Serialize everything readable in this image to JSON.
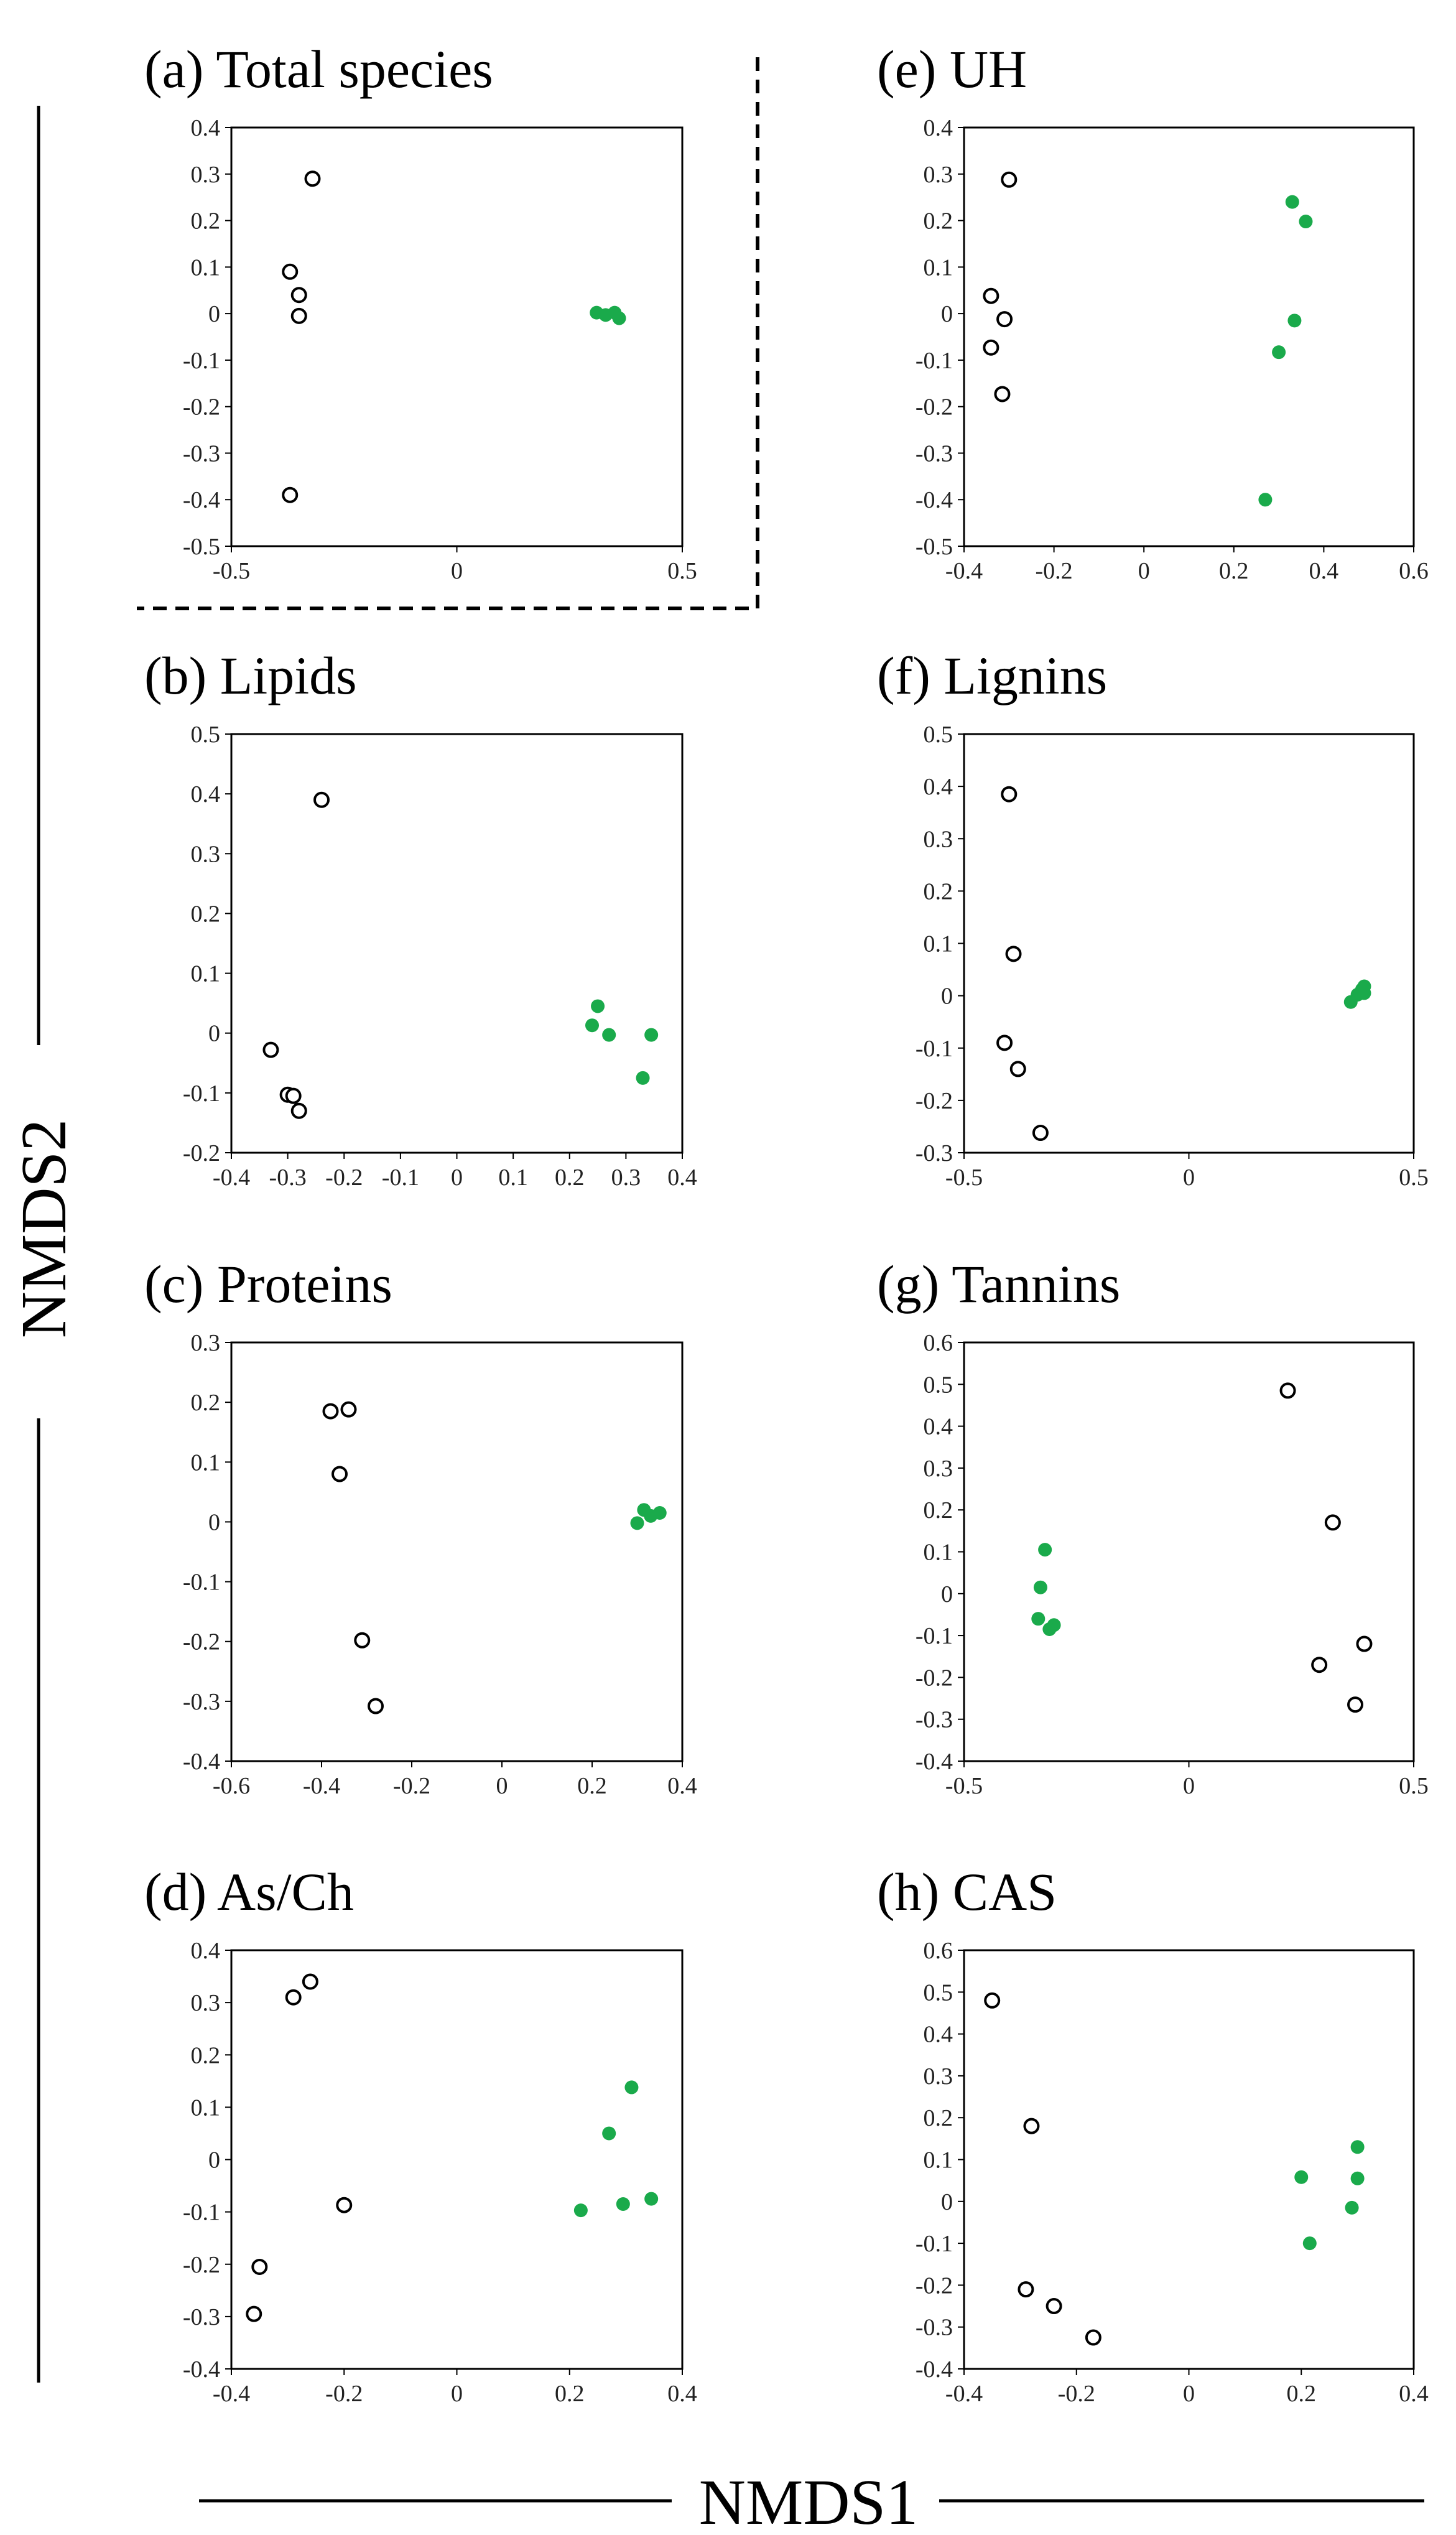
{
  "figure": {
    "x_axis_label": "NMDS1",
    "y_axis_label": "NMDS2",
    "colors": {
      "group_filled": "#1aaa4b",
      "group_open_stroke": "#000000",
      "frame": "#000000"
    }
  },
  "chart_data": [
    {
      "type": "scatter",
      "title": "(a) Total species",
      "xlim": [
        -0.5,
        0.5
      ],
      "xticks": [
        -0.5,
        0,
        0.5
      ],
      "xtick_labels": [
        "-0.5",
        "0",
        "0.5"
      ],
      "ylim": [
        -0.5,
        0.4
      ],
      "yticks": [
        -0.5,
        -0.4,
        -0.3,
        -0.2,
        -0.1,
        0,
        0.1,
        0.2,
        0.3,
        0.4
      ],
      "ytick_labels": [
        "-0.5",
        "-0.4",
        "-0.3",
        "-0.2",
        "-0.1",
        "0",
        "0.1",
        "0.2",
        "0.3",
        "0.4"
      ],
      "dashed_frame": true,
      "series": [
        {
          "name": "open",
          "style": "open",
          "points": [
            [
              -0.32,
              0.29
            ],
            [
              -0.37,
              0.09
            ],
            [
              -0.35,
              0.04
            ],
            [
              -0.35,
              -0.005
            ],
            [
              -0.37,
              -0.39
            ]
          ]
        },
        {
          "name": "filled",
          "style": "filled",
          "points": [
            [
              0.31,
              0.002
            ],
            [
              0.33,
              -0.003
            ],
            [
              0.35,
              0.002
            ],
            [
              0.36,
              -0.01
            ]
          ]
        }
      ]
    },
    {
      "type": "scatter",
      "title": "(b) Lipids",
      "xlim": [
        -0.4,
        0.4
      ],
      "xticks": [
        -0.4,
        -0.3,
        -0.2,
        -0.1,
        0,
        0.1,
        0.2,
        0.3,
        0.4
      ],
      "xtick_labels": [
        "-0.4",
        "-0.3",
        "-0.2",
        "-0.1",
        "0",
        "0.1",
        "0.2",
        "0.3",
        "0.4"
      ],
      "ylim": [
        -0.2,
        0.5
      ],
      "yticks": [
        -0.2,
        -0.1,
        0,
        0.1,
        0.2,
        0.3,
        0.4,
        0.5
      ],
      "ytick_labels": [
        "-0.2",
        "-0.1",
        "0",
        "0.1",
        "0.2",
        "0.3",
        "0.4",
        "0.5"
      ],
      "dashed_frame": false,
      "series": [
        {
          "name": "open",
          "style": "open",
          "points": [
            [
              -0.24,
              0.39
            ],
            [
              -0.33,
              -0.028
            ],
            [
              -0.3,
              -0.103
            ],
            [
              -0.29,
              -0.105
            ],
            [
              -0.28,
              -0.13
            ]
          ]
        },
        {
          "name": "filled",
          "style": "filled",
          "points": [
            [
              0.24,
              0.013
            ],
            [
              0.25,
              0.045
            ],
            [
              0.27,
              -0.003
            ],
            [
              0.33,
              -0.075
            ],
            [
              0.345,
              -0.003
            ]
          ]
        }
      ]
    },
    {
      "type": "scatter",
      "title": "(c) Proteins",
      "xlim": [
        -0.6,
        0.4
      ],
      "xticks": [
        -0.6,
        -0.4,
        -0.2,
        0,
        0.2,
        0.4
      ],
      "xtick_labels": [
        "-0.6",
        "-0.4",
        "-0.2",
        "0",
        "0.2",
        "0.4"
      ],
      "ylim": [
        -0.4,
        0.3
      ],
      "yticks": [
        -0.4,
        -0.3,
        -0.2,
        -0.1,
        0,
        0.1,
        0.2,
        0.3
      ],
      "ytick_labels": [
        "-0.4",
        "-0.3",
        "-0.2",
        "-0.1",
        "0",
        "0.1",
        "0.2",
        "0.3"
      ],
      "dashed_frame": false,
      "series": [
        {
          "name": "open",
          "style": "open",
          "points": [
            [
              -0.38,
              0.185
            ],
            [
              -0.34,
              0.188
            ],
            [
              -0.36,
              0.08
            ],
            [
              -0.31,
              -0.198
            ],
            [
              -0.28,
              -0.308
            ]
          ]
        },
        {
          "name": "filled",
          "style": "filled",
          "points": [
            [
              0.3,
              -0.002
            ],
            [
              0.315,
              0.02
            ],
            [
              0.33,
              0.01
            ],
            [
              0.35,
              0.015
            ]
          ]
        }
      ]
    },
    {
      "type": "scatter",
      "title": "(d) As/Ch",
      "xlim": [
        -0.4,
        0.4
      ],
      "xticks": [
        -0.4,
        -0.2,
        0,
        0.2,
        0.4
      ],
      "xtick_labels": [
        "-0.4",
        "-0.2",
        "0",
        "0.2",
        "0.4"
      ],
      "ylim": [
        -0.4,
        0.4
      ],
      "yticks": [
        -0.4,
        -0.3,
        -0.2,
        -0.1,
        0,
        0.1,
        0.2,
        0.3,
        0.4
      ],
      "ytick_labels": [
        "-0.4",
        "-0.3",
        "-0.2",
        "-0.1",
        "0",
        "0.1",
        "0.2",
        "0.3",
        "0.4"
      ],
      "dashed_frame": false,
      "series": [
        {
          "name": "open",
          "style": "open",
          "points": [
            [
              -0.29,
              0.31
            ],
            [
              -0.26,
              0.34
            ],
            [
              -0.2,
              -0.087
            ],
            [
              -0.35,
              -0.205
            ],
            [
              -0.36,
              -0.295
            ]
          ]
        },
        {
          "name": "filled",
          "style": "filled",
          "points": [
            [
              0.22,
              -0.097
            ],
            [
              0.27,
              0.05
            ],
            [
              0.295,
              -0.085
            ],
            [
              0.31,
              0.138
            ],
            [
              0.345,
              -0.075
            ]
          ]
        }
      ]
    },
    {
      "type": "scatter",
      "title": "(e) UH",
      "xlim": [
        -0.4,
        0.6
      ],
      "xticks": [
        -0.4,
        -0.2,
        0,
        0.2,
        0.4,
        0.6
      ],
      "xtick_labels": [
        "-0.4",
        "-0.2",
        "0",
        "0.2",
        "0.4",
        "0.6"
      ],
      "ylim": [
        -0.5,
        0.4
      ],
      "yticks": [
        -0.5,
        -0.4,
        -0.3,
        -0.2,
        -0.1,
        0,
        0.1,
        0.2,
        0.3,
        0.4
      ],
      "ytick_labels": [
        "-0.5",
        "-0.4",
        "-0.3",
        "-0.2",
        "-0.1",
        "0",
        "0.1",
        "0.2",
        "0.3",
        "0.4"
      ],
      "dashed_frame": false,
      "series": [
        {
          "name": "open",
          "style": "open",
          "points": [
            [
              -0.3,
              0.288
            ],
            [
              -0.34,
              0.038
            ],
            [
              -0.31,
              -0.012
            ],
            [
              -0.34,
              -0.073
            ],
            [
              -0.315,
              -0.173
            ]
          ]
        },
        {
          "name": "filled",
          "style": "filled",
          "points": [
            [
              0.33,
              0.24
            ],
            [
              0.36,
              0.198
            ],
            [
              0.335,
              -0.015
            ],
            [
              0.3,
              -0.083
            ],
            [
              0.27,
              -0.4
            ]
          ]
        }
      ]
    },
    {
      "type": "scatter",
      "title": "(f) Lignins",
      "xlim": [
        -0.5,
        0.5
      ],
      "xticks": [
        -0.5,
        0,
        0.5
      ],
      "xtick_labels": [
        "-0.5",
        "0",
        "0.5"
      ],
      "ylim": [
        -0.3,
        0.5
      ],
      "yticks": [
        -0.3,
        -0.2,
        -0.1,
        0,
        0.1,
        0.2,
        0.3,
        0.4,
        0.5
      ],
      "ytick_labels": [
        "-0.3",
        "-0.2",
        "-0.1",
        "0",
        "0.1",
        "0.2",
        "0.3",
        "0.4",
        "0.5"
      ],
      "dashed_frame": false,
      "series": [
        {
          "name": "open",
          "style": "open",
          "points": [
            [
              -0.4,
              0.385
            ],
            [
              -0.39,
              0.08
            ],
            [
              -0.41,
              -0.09
            ],
            [
              -0.38,
              -0.14
            ],
            [
              -0.33,
              -0.262
            ]
          ]
        },
        {
          "name": "filled",
          "style": "filled",
          "points": [
            [
              0.36,
              -0.012
            ],
            [
              0.375,
              0.002
            ],
            [
              0.385,
              0.012
            ],
            [
              0.39,
              0.018
            ],
            [
              0.39,
              0.005
            ]
          ]
        }
      ]
    },
    {
      "type": "scatter",
      "title": "(g) Tannins",
      "xlim": [
        -0.5,
        0.5
      ],
      "xticks": [
        -0.5,
        0,
        0.5
      ],
      "xtick_labels": [
        "-0.5",
        "0",
        "0.5"
      ],
      "ylim": [
        -0.4,
        0.6
      ],
      "yticks": [
        -0.4,
        -0.3,
        -0.2,
        -0.1,
        0,
        0.1,
        0.2,
        0.3,
        0.4,
        0.5,
        0.6
      ],
      "ytick_labels": [
        "-0.4",
        "-0.3",
        "-0.2",
        "-0.1",
        "0",
        "0.1",
        "0.2",
        "0.3",
        "0.4",
        "0.5",
        "0.6"
      ],
      "dashed_frame": false,
      "series": [
        {
          "name": "open",
          "style": "open",
          "points": [
            [
              0.22,
              0.485
            ],
            [
              0.32,
              0.17
            ],
            [
              0.39,
              -0.12
            ],
            [
              0.29,
              -0.17
            ],
            [
              0.37,
              -0.265
            ]
          ]
        },
        {
          "name": "filled",
          "style": "filled",
          "points": [
            [
              -0.32,
              0.105
            ],
            [
              -0.33,
              0.015
            ],
            [
              -0.335,
              -0.06
            ],
            [
              -0.3,
              -0.075
            ],
            [
              -0.31,
              -0.085
            ]
          ]
        }
      ]
    },
    {
      "type": "scatter",
      "title": "(h) CAS",
      "xlim": [
        -0.4,
        0.4
      ],
      "xticks": [
        -0.4,
        -0.2,
        0,
        0.2,
        0.4
      ],
      "xtick_labels": [
        "-0.4",
        "-0.2",
        "0",
        "0.2",
        "0.4"
      ],
      "ylim": [
        -0.4,
        0.6
      ],
      "yticks": [
        -0.4,
        -0.3,
        -0.2,
        -0.1,
        0,
        0.1,
        0.2,
        0.3,
        0.4,
        0.5,
        0.6
      ],
      "ytick_labels": [
        "-0.4",
        "-0.3",
        "-0.2",
        "-0.1",
        "0",
        "0.1",
        "0.2",
        "0.3",
        "0.4",
        "0.5",
        "0.6"
      ],
      "dashed_frame": false,
      "series": [
        {
          "name": "open",
          "style": "open",
          "points": [
            [
              -0.35,
              0.48
            ],
            [
              -0.28,
              0.18
            ],
            [
              -0.29,
              -0.21
            ],
            [
              -0.24,
              -0.25
            ],
            [
              -0.17,
              -0.325
            ]
          ]
        },
        {
          "name": "filled",
          "style": "filled",
          "points": [
            [
              0.2,
              0.058
            ],
            [
              0.3,
              0.13
            ],
            [
              0.3,
              0.055
            ],
            [
              0.29,
              -0.015
            ],
            [
              0.215,
              -0.1
            ]
          ]
        }
      ]
    }
  ]
}
